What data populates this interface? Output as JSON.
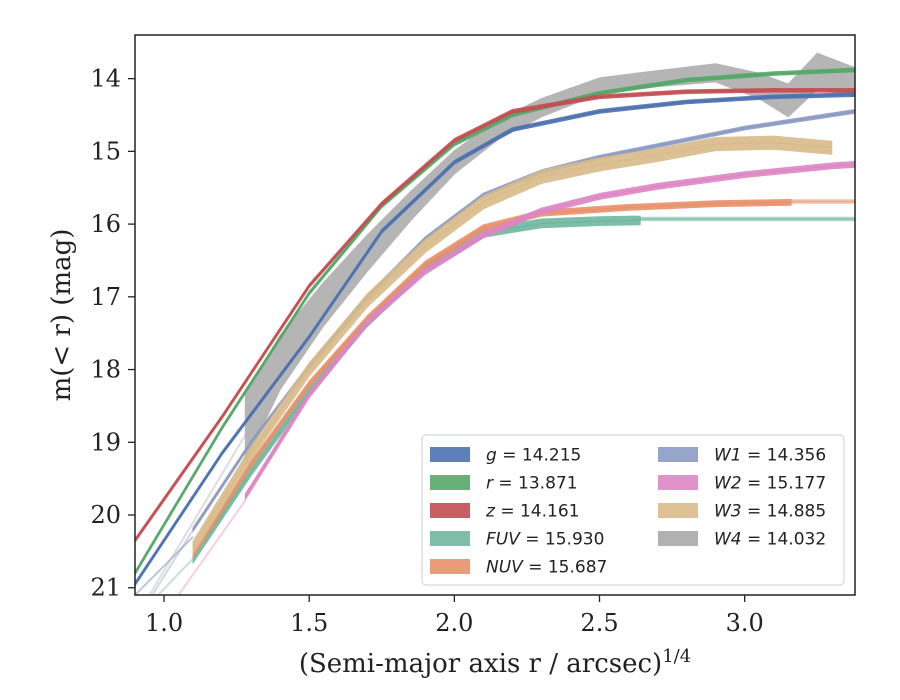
{
  "chart_data": {
    "type": "line",
    "xlabel": "(Semi-major axis r / arcsec)",
    "xlabel_sup": "1/4",
    "ylabel": "m(< r) (mag)",
    "xlim": [
      0.9,
      3.38
    ],
    "ylim": [
      21.1,
      13.4
    ],
    "y_inverted": true,
    "xticks": [
      1.0,
      1.5,
      2.0,
      2.5,
      3.0
    ],
    "xtick_labels": [
      "1.0",
      "1.5",
      "2.0",
      "2.5",
      "3.0"
    ],
    "yticks": [
      14,
      15,
      16,
      17,
      18,
      19,
      20,
      21
    ],
    "ytick_labels": [
      "14",
      "15",
      "16",
      "17",
      "18",
      "19",
      "20",
      "21"
    ],
    "grid": false,
    "legend_position": "lower-right",
    "legend": [
      {
        "band": "g",
        "value": "14.215",
        "color": "#4c72b0"
      },
      {
        "band": "r",
        "value": "13.871",
        "color": "#55a868"
      },
      {
        "band": "z",
        "value": "14.161",
        "color": "#c44e52"
      },
      {
        "band": "FUV",
        "value": "15.930",
        "color": "#70b7a0"
      },
      {
        "band": "NUV",
        "value": "15.687",
        "color": "#e8906a"
      },
      {
        "band": "W1",
        "value": "14.356",
        "color": "#8c9bc4"
      },
      {
        "band": "W2",
        "value": "15.177",
        "color": "#dd86c4"
      },
      {
        "band": "W3",
        "value": "14.885",
        "color": "#d9bb8a"
      },
      {
        "band": "W4",
        "value": "14.032",
        "color": "#a9a9a9"
      }
    ],
    "series": [
      {
        "name": "g",
        "color": "#4c72b0",
        "width": 0.05,
        "x": [
          0.9,
          1.2,
          1.5,
          1.75,
          2.0,
          2.2,
          2.5,
          2.8,
          3.1,
          3.38
        ],
        "y": [
          20.95,
          19.15,
          17.55,
          16.1,
          15.15,
          14.7,
          14.45,
          14.32,
          14.25,
          14.22
        ]
      },
      {
        "name": "r",
        "color": "#55a868",
        "width": 0.05,
        "x": [
          0.9,
          1.2,
          1.5,
          1.75,
          2.0,
          2.2,
          2.5,
          2.8,
          3.1,
          3.38
        ],
        "y": [
          20.8,
          18.8,
          16.95,
          15.75,
          14.9,
          14.5,
          14.2,
          14.02,
          13.93,
          13.88
        ]
      },
      {
        "name": "z",
        "color": "#c44e52",
        "width": 0.05,
        "x": [
          0.9,
          1.2,
          1.5,
          1.75,
          2.0,
          2.2,
          2.5,
          2.8,
          3.1,
          3.38
        ],
        "y": [
          20.35,
          18.65,
          16.85,
          15.72,
          14.85,
          14.45,
          14.25,
          14.18,
          14.16,
          14.16
        ]
      },
      {
        "name": "FUV",
        "color": "#70b7a0",
        "width": 0.12,
        "x": [
          1.1,
          1.3,
          1.5,
          1.7,
          1.9,
          2.1,
          2.3,
          2.5,
          2.64
        ],
        "y": [
          20.6,
          19.4,
          18.3,
          17.35,
          16.6,
          16.12,
          15.99,
          15.96,
          15.95
        ]
      },
      {
        "name": "FUV extension",
        "color": "#70b7a0",
        "width": 0.05,
        "opacity": 0.55,
        "x": [
          2.64,
          3.38
        ],
        "y": [
          15.93,
          15.93
        ]
      },
      {
        "name": "NUV",
        "color": "#e8906a",
        "width": 0.08,
        "x": [
          1.1,
          1.3,
          1.5,
          1.7,
          1.9,
          2.1,
          2.3,
          2.6,
          2.9,
          3.16
        ],
        "y": [
          20.55,
          19.3,
          18.2,
          17.3,
          16.55,
          16.05,
          15.85,
          15.77,
          15.72,
          15.7
        ]
      },
      {
        "name": "NUV extension",
        "color": "#e8906a",
        "width": 0.05,
        "opacity": 0.5,
        "x": [
          3.16,
          3.38
        ],
        "y": [
          15.69,
          15.69
        ]
      },
      {
        "name": "W1",
        "color": "#8c9bc4",
        "width": 0.05,
        "x": [
          1.1,
          1.3,
          1.5,
          1.7,
          1.9,
          2.1,
          2.3,
          2.5,
          2.7,
          3.0,
          3.38
        ],
        "y": [
          20.2,
          19.0,
          17.95,
          17.0,
          16.2,
          15.6,
          15.28,
          15.08,
          14.92,
          14.68,
          14.45
        ]
      },
      {
        "name": "W2",
        "color": "#dd86c4",
        "width": 0.08,
        "x": [
          1.28,
          1.5,
          1.7,
          1.9,
          2.1,
          2.3,
          2.5,
          2.7,
          3.0,
          3.3,
          3.38
        ],
        "y": [
          19.75,
          18.35,
          17.35,
          16.65,
          16.15,
          15.82,
          15.62,
          15.48,
          15.32,
          15.2,
          15.18
        ]
      },
      {
        "name": "W3",
        "color": "#d9bb8a",
        "width": 0.18,
        "x": [
          1.1,
          1.3,
          1.5,
          1.7,
          1.9,
          2.1,
          2.3,
          2.5,
          2.7,
          2.9,
          3.1,
          3.3
        ],
        "y": [
          20.45,
          19.15,
          18.0,
          17.05,
          16.3,
          15.7,
          15.35,
          15.18,
          15.05,
          14.9,
          14.88,
          14.95
        ]
      },
      {
        "name": "W4",
        "color": "#a9a9a9",
        "opacity": 0.85,
        "x": [
          1.28,
          1.4,
          1.55,
          1.7,
          1.85,
          2.0,
          2.15,
          2.3,
          2.5,
          2.7,
          2.9,
          3.05,
          3.15,
          3.25,
          3.38
        ],
        "y": [
          18.8,
          17.9,
          17.1,
          16.4,
          15.75,
          15.15,
          14.7,
          14.4,
          14.1,
          14.0,
          13.92,
          14.1,
          14.3,
          13.9,
          14.05
        ],
        "band_width": [
          0.95,
          0.75,
          0.6,
          0.5,
          0.4,
          0.32,
          0.28,
          0.25,
          0.22,
          0.22,
          0.25,
          0.35,
          0.45,
          0.5,
          0.4
        ]
      }
    ],
    "faint_inner_extensions": [
      {
        "color": "#4c72b0",
        "x": [
          0.9,
          1.1
        ],
        "y": [
          21.1,
          20.3
        ]
      },
      {
        "color": "#a9a9a9",
        "x": [
          0.95,
          1.28
        ],
        "y": [
          21.1,
          18.9
        ]
      },
      {
        "color": "#70b7a0",
        "x": [
          0.98,
          1.1
        ],
        "y": [
          21.1,
          20.6
        ]
      },
      {
        "color": "#dd86c4",
        "x": [
          1.05,
          1.28
        ],
        "y": [
          21.1,
          19.8
        ]
      },
      {
        "color": "#8c9bc4",
        "x": [
          0.96,
          1.1
        ],
        "y": [
          21.1,
          20.2
        ]
      }
    ]
  }
}
